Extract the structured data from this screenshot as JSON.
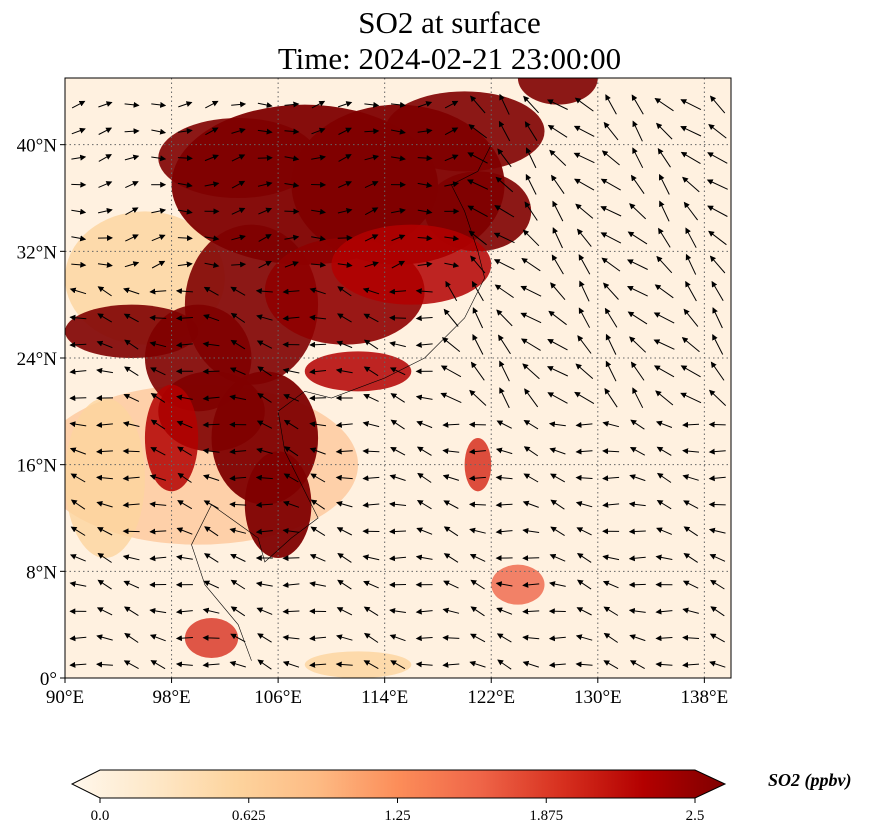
{
  "title": {
    "line1": "SO2 at surface",
    "line2": "Time: 2024-02-21 23:00:00"
  },
  "map": {
    "projection": "PlateCarree",
    "lon_range": [
      90,
      140
    ],
    "lat_range": [
      0,
      45
    ],
    "x_ticks": [
      {
        "value": 90,
        "label": "90°E"
      },
      {
        "value": 98,
        "label": "98°E"
      },
      {
        "value": 106,
        "label": "106°E"
      },
      {
        "value": 114,
        "label": "114°E"
      },
      {
        "value": 122,
        "label": "122°E"
      },
      {
        "value": 130,
        "label": "130°E"
      },
      {
        "value": 138,
        "label": "138°E"
      }
    ],
    "y_ticks": [
      {
        "value": 0,
        "label": "0°"
      },
      {
        "value": 8,
        "label": "8°N"
      },
      {
        "value": 16,
        "label": "16°N"
      },
      {
        "value": 24,
        "label": "24°N"
      },
      {
        "value": 32,
        "label": "32°N"
      },
      {
        "value": 40,
        "label": "40°N"
      }
    ],
    "gridlines": "dotted",
    "field": "SO2 surface concentration (filled)",
    "overlay": "wind vectors (quiver)"
  },
  "colorbar": {
    "label": "SO2 (ppbv)",
    "vmin": 0.0,
    "vmax": 2.5,
    "ticks": [
      {
        "value": 0.0,
        "label": "0.0"
      },
      {
        "value": 0.625,
        "label": "0.625"
      },
      {
        "value": 1.25,
        "label": "1.25"
      },
      {
        "value": 1.875,
        "label": "1.875"
      },
      {
        "value": 2.5,
        "label": "2.5"
      }
    ],
    "colormap": "OrRd",
    "extend": "both",
    "colors": [
      "#fff7ec",
      "#fee8c8",
      "#fdd49e",
      "#fdbb84",
      "#fc8d59",
      "#ef6548",
      "#d7301f",
      "#b30000",
      "#7f0000"
    ]
  }
}
